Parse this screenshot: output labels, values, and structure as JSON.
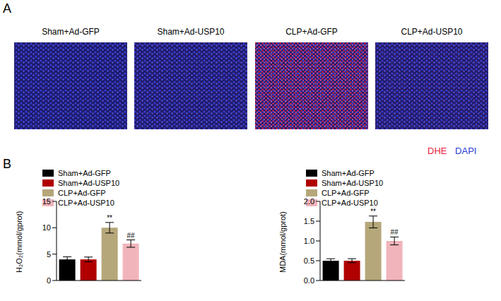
{
  "panel_labels": [
    "A",
    "B"
  ],
  "panel_a": {
    "images": [
      "Sham+Ad-GFP",
      "Sham+Ad-USP10",
      "CLP+Ad-GFP",
      "CLP+Ad-USP10"
    ],
    "stains": [
      {
        "name": "DHE",
        "color": "#e8203c"
      },
      {
        "name": "DAPI",
        "color": "#2a3bd8"
      }
    ]
  },
  "chart_data": [
    {
      "type": "bar",
      "categories": [
        "Sham+Ad-GFP",
        "Sham+Ad-USP10",
        "CLP+Ad-GFP",
        "CLP+Ad-USP10"
      ],
      "colors": [
        "#000000",
        "#b00000",
        "#b5a77a",
        "#f2b4bb"
      ],
      "values": [
        4,
        4,
        10,
        7
      ],
      "errors": [
        0.5,
        0.45,
        1.0,
        0.7
      ],
      "annotations": [
        null,
        null,
        "**",
        "##"
      ],
      "y_label": "H₂O₂(mmol/gprot)",
      "ylim": [
        0,
        15
      ],
      "yticks": [
        0,
        5,
        10,
        15
      ],
      "legend": "top left",
      "tick_labels": "y",
      "grid": false
    },
    {
      "type": "bar",
      "categories": [
        "Sham+Ad-GFP",
        "Sham+Ad-USP10",
        "CLP+Ad-GFP",
        "CLP+Ad-USP10"
      ],
      "colors": [
        "#000000",
        "#b00000",
        "#b5a77a",
        "#f2b4bb"
      ],
      "values": [
        0.5,
        0.5,
        1.48,
        1.0
      ],
      "errors": [
        0.05,
        0.05,
        0.15,
        0.1
      ],
      "annotations": [
        null,
        null,
        "**",
        "##"
      ],
      "y_label": "MDA(mmol/gprot)",
      "ylim": [
        0,
        2
      ],
      "yticks": [
        {
          "value": 0,
          "label": "0.0"
        },
        0.5,
        {
          "value": 1,
          "label": "1.0"
        },
        1.5,
        {
          "value": 2,
          "label": "2.0"
        }
      ],
      "legend": "top left",
      "tick_labels": "y",
      "grid": false
    }
  ]
}
